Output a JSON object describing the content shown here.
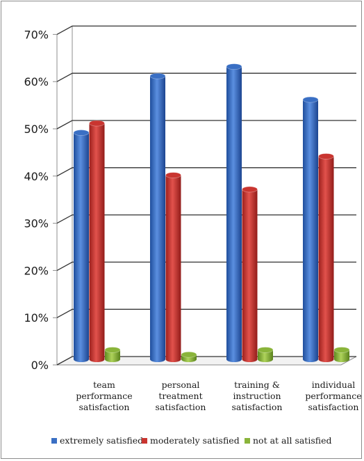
{
  "chart_data": {
    "type": "bar",
    "title": "",
    "xlabel": "",
    "ylabel": "",
    "ylim": [
      0,
      70
    ],
    "yticks": [
      "0%",
      "10%",
      "20%",
      "30%",
      "40%",
      "50%",
      "60%",
      "70%"
    ],
    "grid": true,
    "legend_position": "bottom",
    "categories": [
      [
        "team",
        "performance",
        "satisfaction"
      ],
      [
        "personal",
        "treatment",
        "satisfaction"
      ],
      [
        "training &",
        "instruction",
        "satisfaction"
      ],
      [
        "individual",
        "performance",
        "satisfaction"
      ]
    ],
    "series": [
      {
        "name": "extremely satisfied",
        "color": "#3a6fc4",
        "values": [
          48,
          60,
          62,
          55
        ]
      },
      {
        "name": "moderately satisfied",
        "color": "#c93530",
        "values": [
          50,
          39,
          36,
          43
        ]
      },
      {
        "name": "not at all satisfied",
        "color": "#8ab43a",
        "values": [
          2,
          1,
          2,
          2
        ]
      }
    ]
  }
}
